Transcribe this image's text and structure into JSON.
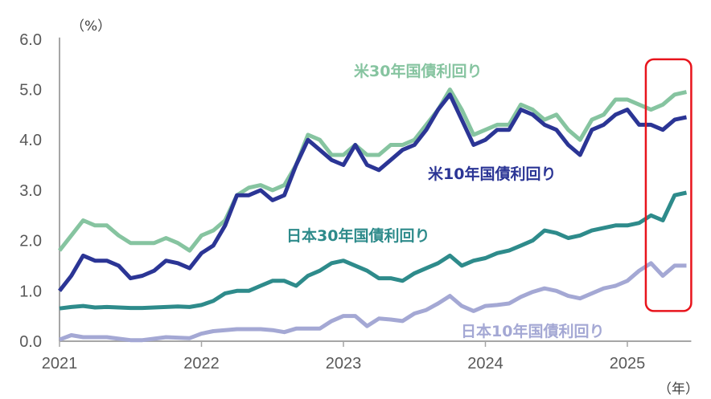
{
  "chart_data": {
    "type": "line",
    "title": "",
    "ylabel": "（%）",
    "xlabel": "（年）",
    "ylim": [
      0,
      6
    ],
    "xlim": [
      2021,
      2025.45
    ],
    "yticks": [
      "0.0",
      "1.0",
      "2.0",
      "3.0",
      "4.0",
      "5.0",
      "6.0"
    ],
    "xticks": [
      "2021",
      "2022",
      "2023",
      "2024",
      "2025"
    ],
    "grid": false,
    "x_start": 2021,
    "x_step_months": 1,
    "series": [
      {
        "name": "米30年国債利回り",
        "color": "#86c4a0",
        "values": [
          1.8,
          2.1,
          2.4,
          2.3,
          2.3,
          2.1,
          1.95,
          1.95,
          1.95,
          2.05,
          1.95,
          1.8,
          2.1,
          2.2,
          2.4,
          2.9,
          3.05,
          3.1,
          3.0,
          3.1,
          3.5,
          4.1,
          4.0,
          3.7,
          3.7,
          3.9,
          3.7,
          3.7,
          3.9,
          3.9,
          4.0,
          4.3,
          4.6,
          5.0,
          4.6,
          4.1,
          4.2,
          4.3,
          4.3,
          4.7,
          4.6,
          4.4,
          4.5,
          4.2,
          4.0,
          4.4,
          4.5,
          4.8,
          4.8,
          4.7,
          4.6,
          4.7,
          4.9,
          4.95
        ]
      },
      {
        "name": "米10年国債利回り",
        "color": "#2b3595",
        "values": [
          1.0,
          1.3,
          1.7,
          1.6,
          1.6,
          1.5,
          1.25,
          1.3,
          1.4,
          1.6,
          1.55,
          1.45,
          1.75,
          1.9,
          2.3,
          2.9,
          2.9,
          3.0,
          2.8,
          2.9,
          3.5,
          4.0,
          3.8,
          3.6,
          3.5,
          3.9,
          3.5,
          3.4,
          3.6,
          3.8,
          3.9,
          4.2,
          4.6,
          4.9,
          4.4,
          3.9,
          4.0,
          4.2,
          4.2,
          4.6,
          4.5,
          4.3,
          4.2,
          3.9,
          3.7,
          4.2,
          4.3,
          4.5,
          4.6,
          4.3,
          4.3,
          4.2,
          4.4,
          4.45
        ]
      },
      {
        "name": "日本30年国債利回り",
        "color": "#2e8b8b",
        "values": [
          0.65,
          0.68,
          0.7,
          0.67,
          0.68,
          0.67,
          0.66,
          0.66,
          0.67,
          0.68,
          0.69,
          0.68,
          0.72,
          0.8,
          0.95,
          1.0,
          1.0,
          1.1,
          1.2,
          1.2,
          1.1,
          1.3,
          1.4,
          1.55,
          1.6,
          1.5,
          1.4,
          1.25,
          1.25,
          1.2,
          1.35,
          1.45,
          1.55,
          1.7,
          1.5,
          1.6,
          1.65,
          1.75,
          1.8,
          1.9,
          2.0,
          2.2,
          2.15,
          2.05,
          2.1,
          2.2,
          2.25,
          2.3,
          2.3,
          2.35,
          2.5,
          2.4,
          2.9,
          2.95
        ]
      },
      {
        "name": "日本10年国債利回り",
        "color": "#a4a8d4",
        "values": [
          0.03,
          0.12,
          0.08,
          0.08,
          0.08,
          0.05,
          0.02,
          0.02,
          0.05,
          0.08,
          0.07,
          0.06,
          0.15,
          0.2,
          0.22,
          0.24,
          0.24,
          0.24,
          0.22,
          0.18,
          0.25,
          0.25,
          0.25,
          0.4,
          0.5,
          0.5,
          0.3,
          0.45,
          0.43,
          0.4,
          0.55,
          0.62,
          0.75,
          0.9,
          0.7,
          0.6,
          0.7,
          0.72,
          0.75,
          0.88,
          0.98,
          1.05,
          1.0,
          0.9,
          0.85,
          0.95,
          1.05,
          1.1,
          1.2,
          1.4,
          1.55,
          1.3,
          1.5,
          1.5
        ]
      }
    ],
    "annotations": [
      {
        "type": "highlight-box",
        "color": "#e8141c",
        "x_range": [
          2025.13,
          2025.45
        ],
        "y_range": [
          0.6,
          5.6
        ]
      }
    ]
  }
}
